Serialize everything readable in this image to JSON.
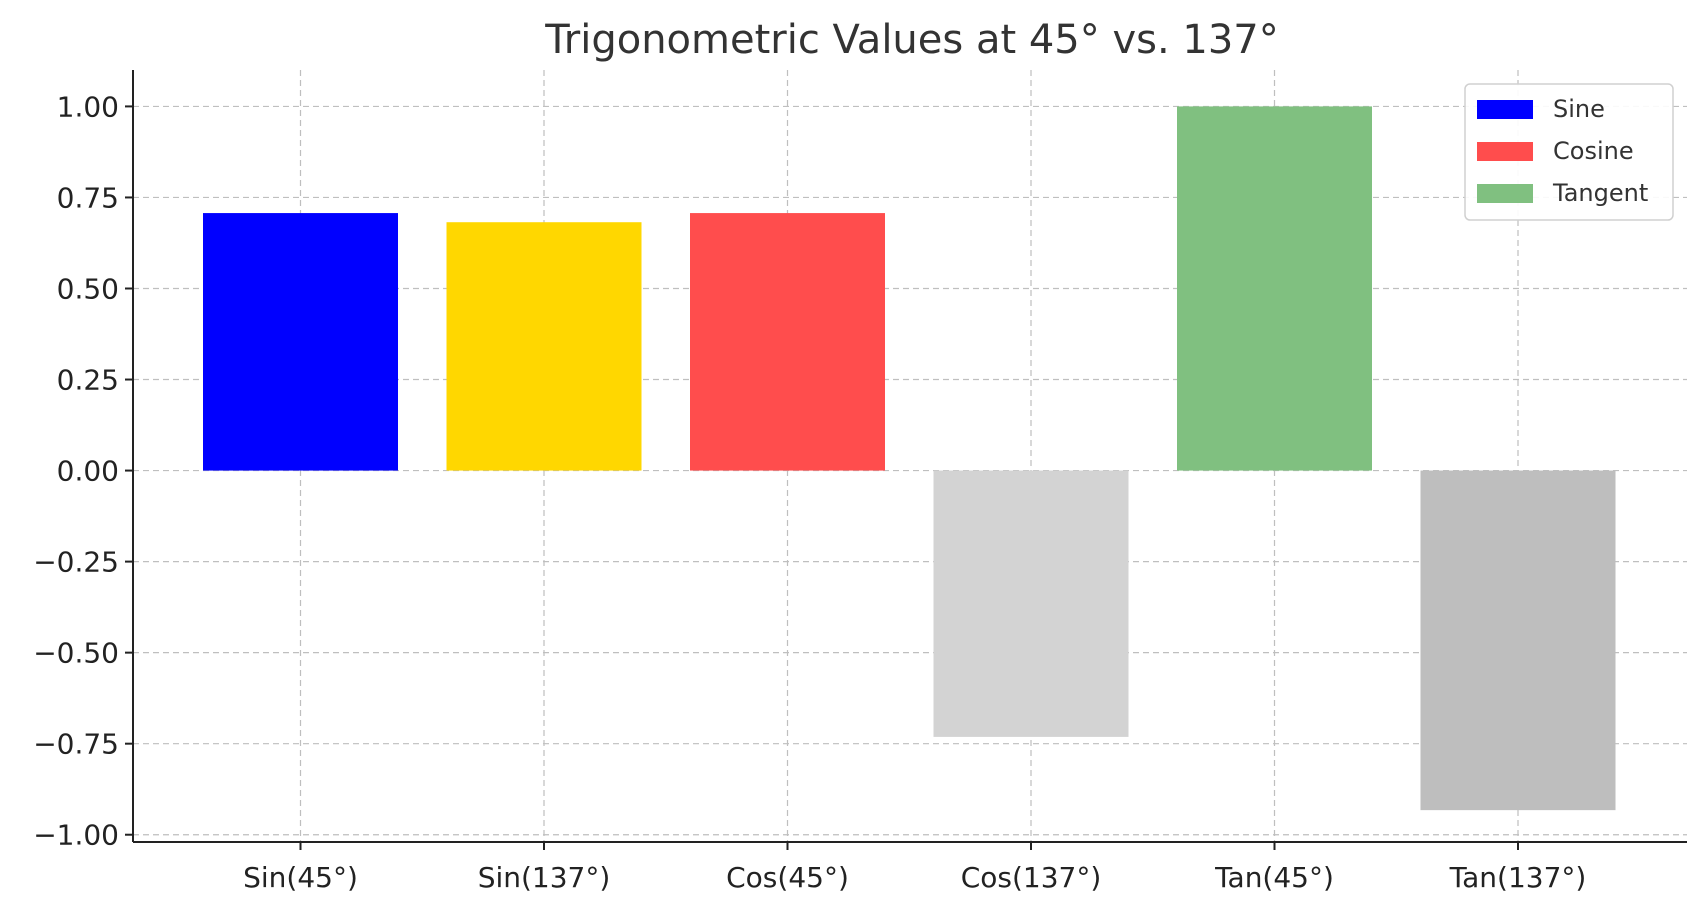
{
  "chart_data": {
    "type": "bar",
    "title": "Trigonometric Values at 45° vs. 137°",
    "xlabel": "",
    "ylabel": "",
    "categories": [
      "Sin(45°)",
      "Sin(137°)",
      "Cos(45°)",
      "Cos(137°)",
      "Tan(45°)",
      "Tan(137°)"
    ],
    "values": [
      0.7071,
      0.682,
      0.7071,
      -0.7314,
      1.0,
      -0.9325
    ],
    "bar_colors": [
      "#0000ff",
      "#ffd700",
      "#ff4d4d",
      "#d3d3d3",
      "#80c080",
      "#bebebe"
    ],
    "ylim": [
      -1.02,
      1.1
    ],
    "yticks": [
      1.0,
      0.75,
      0.5,
      0.25,
      0.0,
      -0.25,
      -0.5,
      -0.75,
      -1.0
    ],
    "ytick_labels": [
      "1.00",
      "0.75",
      "0.50",
      "0.25",
      "0.00",
      "−0.25",
      "−0.50",
      "−0.75",
      "−1.00"
    ],
    "grid": true,
    "legend": {
      "placement": "top-right",
      "entries": [
        {
          "label": "Sine",
          "color": "#0000ff"
        },
        {
          "label": "Cosine",
          "color": "#ff4d4d"
        },
        {
          "label": "Tangent",
          "color": "#80c080"
        }
      ]
    }
  }
}
